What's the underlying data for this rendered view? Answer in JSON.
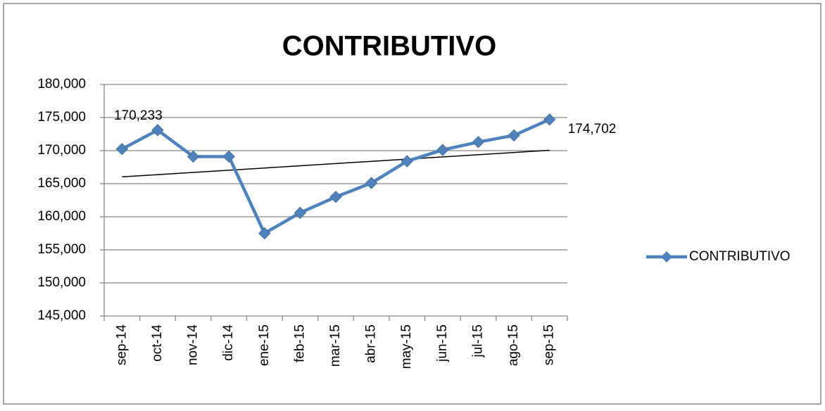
{
  "chart_data": {
    "type": "line",
    "title": "CONTRIBUTIVO",
    "categories": [
      "sep-14",
      "oct-14",
      "nov-14",
      "dic-14",
      "ene-15",
      "feb-15",
      "mar-15",
      "abr-15",
      "may-15",
      "jun-15",
      "jul-15",
      "ago-15",
      "sep-15"
    ],
    "series": [
      {
        "name": "CONTRIBUTIVO",
        "color": "#4f81bd",
        "values": [
          170233,
          173100,
          169100,
          169100,
          157500,
          160600,
          163000,
          165100,
          168400,
          170100,
          171300,
          172300,
          174702
        ],
        "value_labels": [
          "170,233",
          null,
          null,
          null,
          null,
          null,
          null,
          null,
          null,
          null,
          null,
          null,
          "174,702"
        ]
      }
    ],
    "ylim": [
      145000,
      180000
    ],
    "yticks": [
      {
        "value": 145000,
        "label": "145,000"
      },
      {
        "value": 150000,
        "label": "150,000"
      },
      {
        "value": 155000,
        "label": "155,000"
      },
      {
        "value": 160000,
        "label": "160,000"
      },
      {
        "value": 165000,
        "label": "165,000"
      },
      {
        "value": 170000,
        "label": "170,000"
      },
      {
        "value": 175000,
        "label": "175,000"
      },
      {
        "value": 180000,
        "label": "180,000"
      }
    ],
    "grid": true,
    "trendline": "linear",
    "legend": "right"
  }
}
